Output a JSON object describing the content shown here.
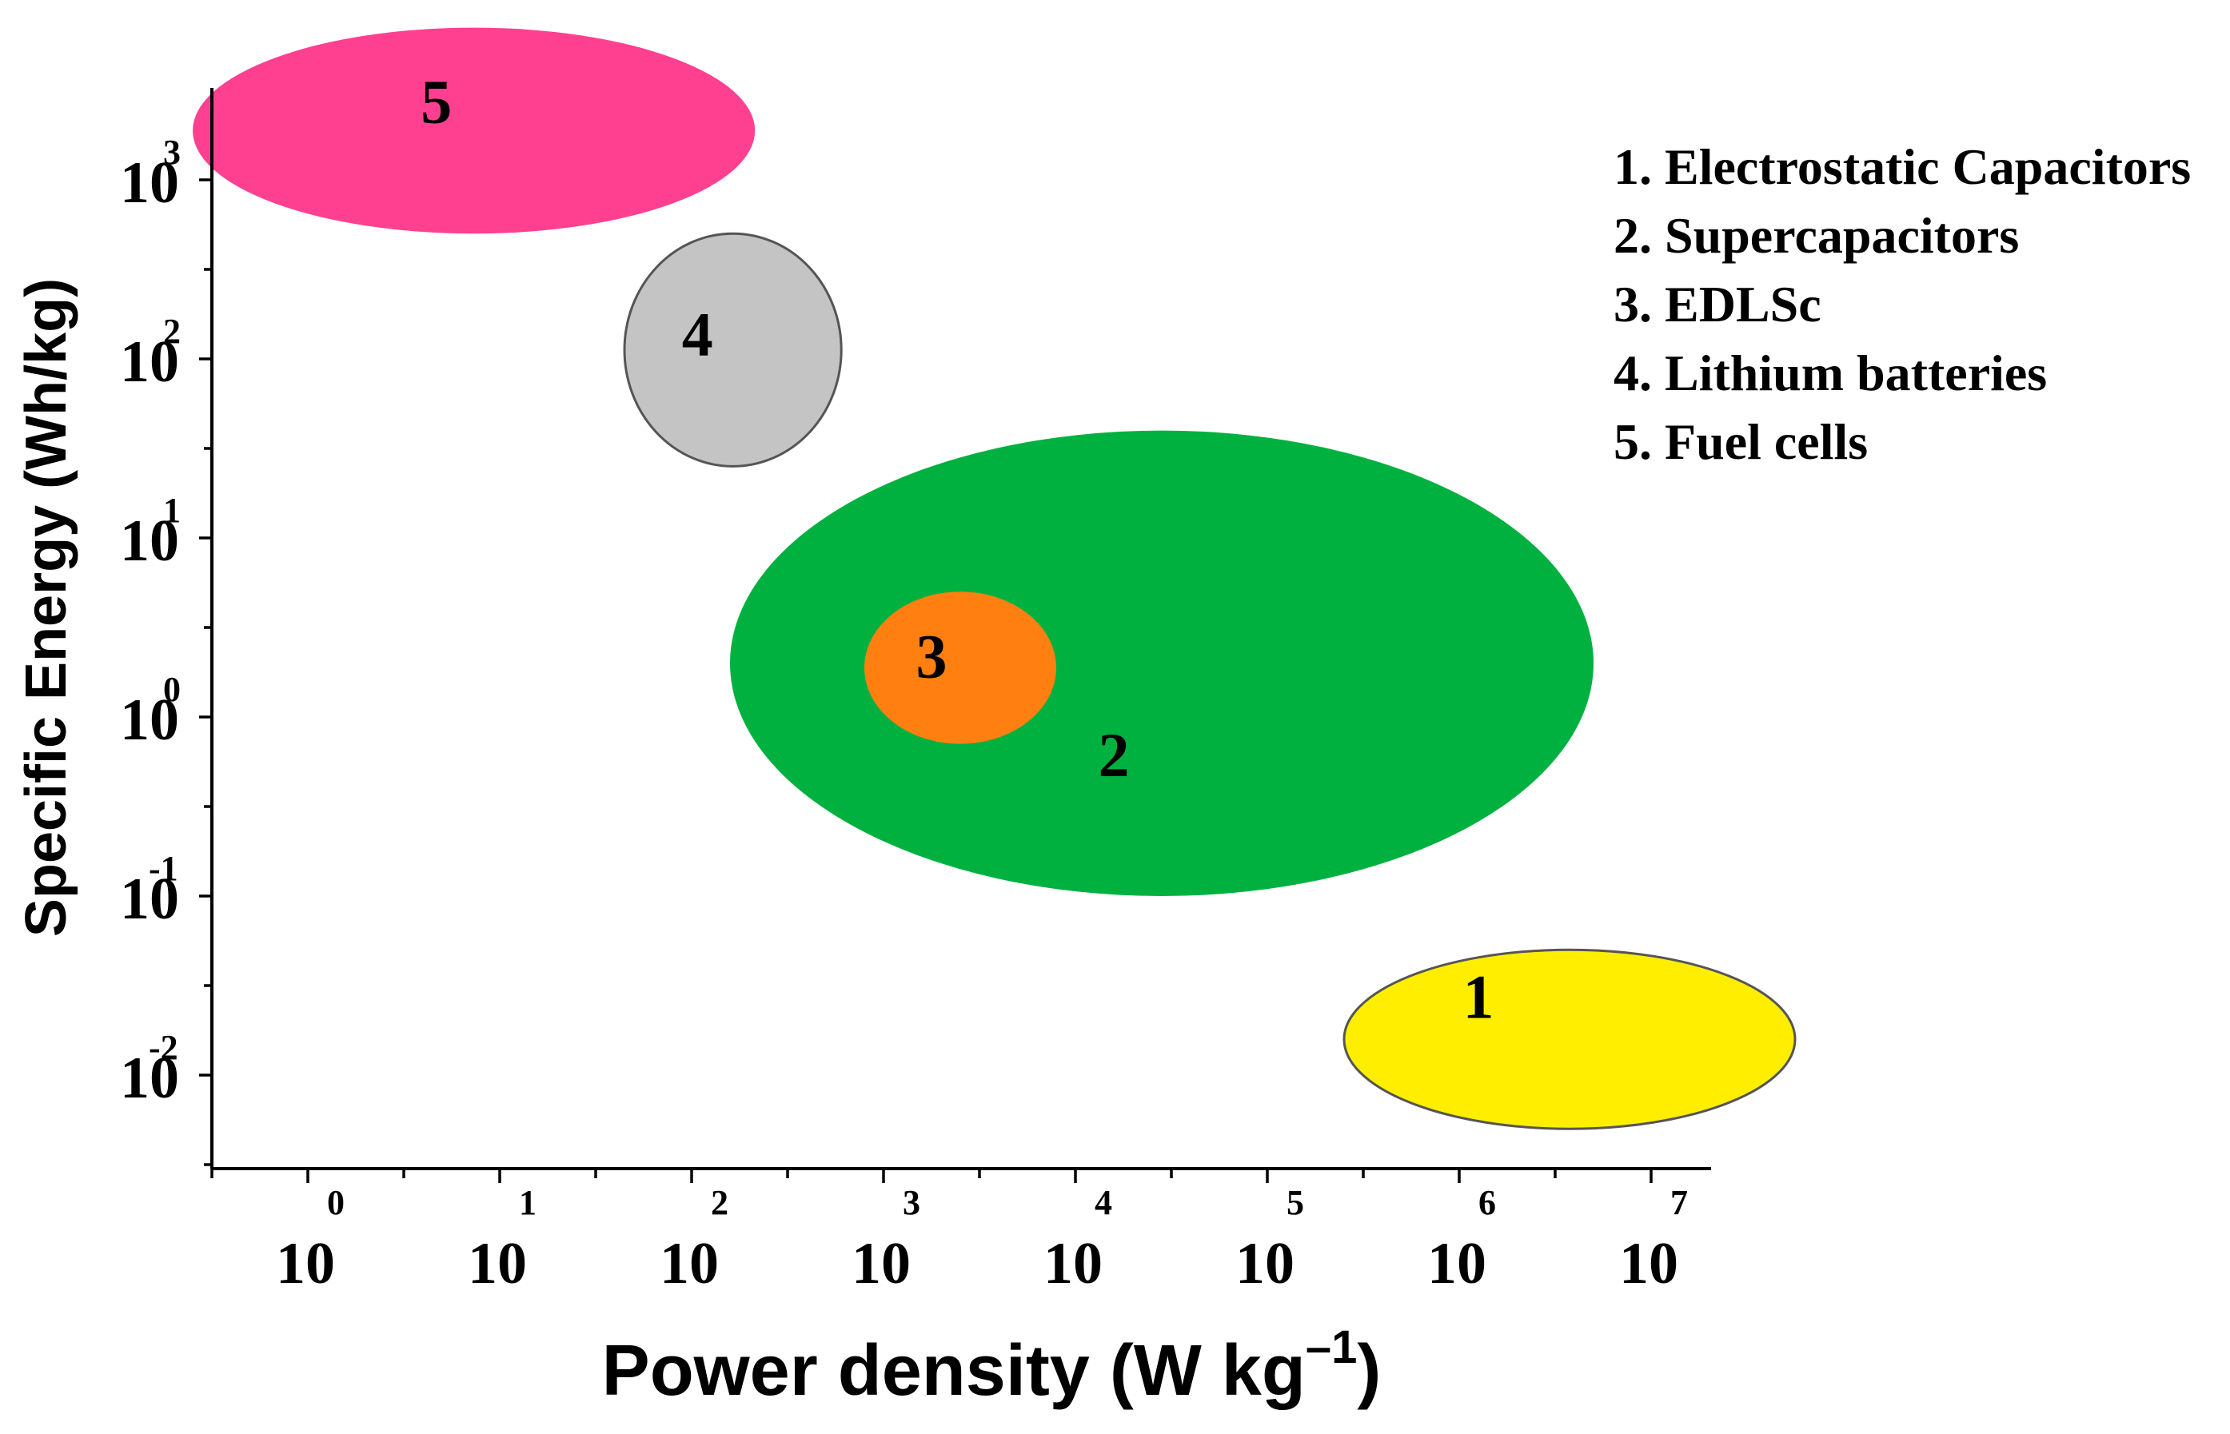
{
  "chart_data": {
    "type": "scatter",
    "xlabel": "Power density (W kg",
    "xlabel_exponent": "–1",
    "xlabel_close": ")",
    "ylabel": "Specific Energy (Wh/kg)",
    "x_scale": "log",
    "y_scale": "log",
    "xlim_log10": [
      -0.5,
      7.3
    ],
    "ylim_log10": [
      -2.5,
      3.5
    ],
    "x_ticks": [
      {
        "base": "10",
        "exp": "0",
        "log10": 0
      },
      {
        "base": "10",
        "exp": "1",
        "log10": 1
      },
      {
        "base": "10",
        "exp": "2",
        "log10": 2
      },
      {
        "base": "10",
        "exp": "3",
        "log10": 3
      },
      {
        "base": "10",
        "exp": "4",
        "log10": 4
      },
      {
        "base": "10",
        "exp": "5",
        "log10": 5
      },
      {
        "base": "10",
        "exp": "6",
        "log10": 6
      },
      {
        "base": "10",
        "exp": "7",
        "log10": 7
      }
    ],
    "y_ticks": [
      {
        "base": "10",
        "exp": "-2",
        "log10": -2
      },
      {
        "base": "10",
        "exp": "-1",
        "log10": -1
      },
      {
        "base": "10",
        "exp": "0",
        "log10": 0
      },
      {
        "base": "10",
        "exp": "1",
        "log10": 1
      },
      {
        "base": "10",
        "exp": "2",
        "log10": 2
      },
      {
        "base": "10",
        "exp": "3",
        "log10": 3
      }
    ],
    "grid": false,
    "legend_position": "top-right",
    "legend": [
      "1. Electrostatic Capacitors",
      "2. Supercapacitors",
      "3. EDLSc",
      "4. Lithium batteries",
      "5. Fuel cells"
    ],
    "regions": [
      {
        "label": "2",
        "name": "Supercapacitors",
        "x_log10_range": [
          2.2,
          6.7
        ],
        "y_log10_range": [
          -1.0,
          1.6
        ],
        "color": "#00b140",
        "label_at_log10": [
          4.2,
          -0.25
        ]
      },
      {
        "label": "1",
        "name": "Electrostatic Capacitors",
        "x_log10_range": [
          5.4,
          7.75
        ],
        "y_log10_range": [
          -2.3,
          -1.3
        ],
        "color": "#ffee00",
        "label_at_log10": [
          6.1,
          -1.6
        ]
      },
      {
        "label": "3",
        "name": "EDLSc",
        "x_log10_range": [
          2.9,
          3.9
        ],
        "y_log10_range": [
          -0.15,
          0.7
        ],
        "color": "#ff7f10",
        "label_at_log10": [
          3.25,
          0.3
        ]
      },
      {
        "label": "4",
        "name": "Lithium batteries",
        "x_log10_range": [
          1.65,
          2.78
        ],
        "y_log10_range": [
          1.4,
          2.7
        ],
        "color": "#c4c4c4",
        "label_at_log10": [
          2.03,
          2.1
        ]
      },
      {
        "label": "5",
        "name": "Fuel cells",
        "x_log10_range": [
          -0.6,
          2.33
        ],
        "y_log10_range": [
          2.7,
          3.85
        ],
        "color": "#ff4090",
        "label_at_log10": [
          0.67,
          3.4
        ]
      }
    ]
  }
}
